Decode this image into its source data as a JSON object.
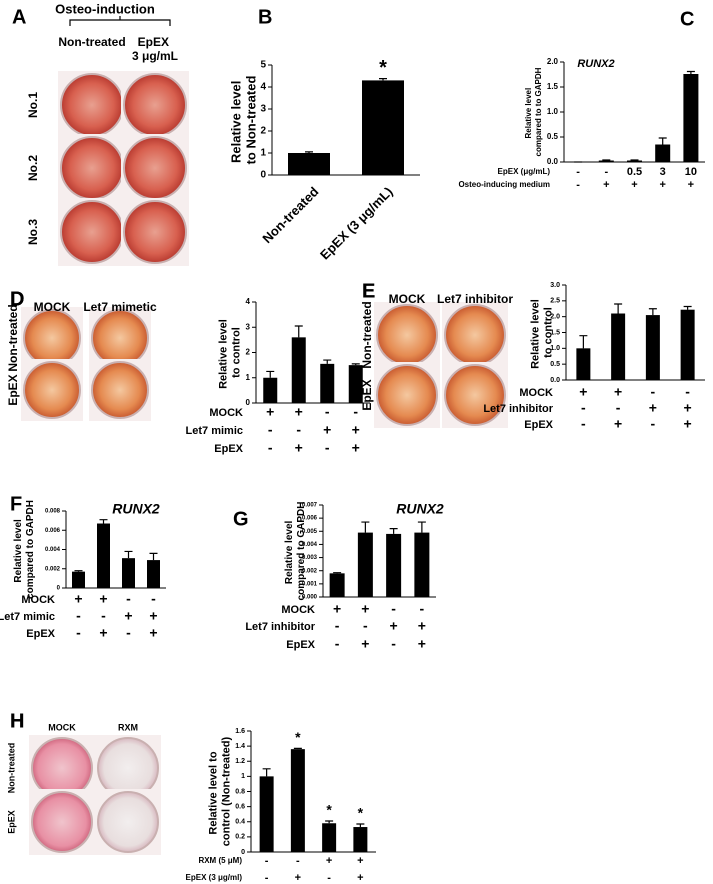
{
  "photos": {
    "A": {
      "label": "A",
      "header": "Osteo-induction",
      "columns": [
        "Non-treated",
        "EpEX 3 μg/mL"
      ],
      "rows": [
        "No.1",
        "No.2",
        "No.3"
      ]
    },
    "D": {
      "label": "D",
      "columns": [
        "MOCK",
        "Let7 mimetic"
      ],
      "rows": [
        "Non-treated",
        "EpEX"
      ]
    },
    "E": {
      "label": "E",
      "columns": [
        "MOCK",
        "Let7 inhibitor"
      ],
      "rows": [
        "Non-treated",
        "EpEX"
      ]
    },
    "H": {
      "label": "H",
      "columns": [
        "MOCK",
        "RXM"
      ],
      "rows": [
        "Non-treated",
        "EpEX"
      ]
    }
  },
  "chart_data": [
    {
      "type": "bar",
      "panel": "B",
      "ylabel": "Relative level to Non-treated",
      "color": "#000000",
      "categories": [
        "Non-treated",
        "EpEX (3 μg/mL)"
      ],
      "values": [
        1,
        4.3
      ],
      "errors": [
        0.05,
        0.08
      ],
      "significance": [
        null,
        "*"
      ],
      "ylim": [
        0,
        5
      ],
      "yticks": [
        0,
        1,
        2,
        3,
        4,
        5
      ]
    },
    {
      "type": "bar",
      "panel": "C",
      "title": "RUNX2",
      "ylabel": "Relative level compared to to GAPDH",
      "color": "#000000",
      "values": [
        0,
        0.03,
        0.03,
        0.35,
        1.76
      ],
      "errors": [
        0,
        0.01,
        0.01,
        0.13,
        0.05
      ],
      "conditions": [
        {
          "label": "EpEX (μg/mL)",
          "marks": [
            "-",
            "-",
            "0.5",
            "3",
            "10"
          ]
        },
        {
          "label": "Osteo-inducing medium",
          "marks": [
            "-",
            "+",
            "+",
            "+",
            "+"
          ]
        }
      ],
      "ylim": [
        0,
        2
      ],
      "yticks": [
        {
          "value": 0,
          "label": "0.0"
        },
        {
          "value": 0.5,
          "label": "0.5"
        },
        {
          "value": 1,
          "label": "1.0"
        },
        {
          "value": 1.5,
          "label": "1.5"
        },
        {
          "value": 2,
          "label": "2.0"
        }
      ]
    },
    {
      "type": "bar",
      "panel": "D",
      "ylabel": "Relative level to control",
      "color": "#000000",
      "values": [
        1,
        2.6,
        1.55,
        1.5
      ],
      "errors": [
        0.25,
        0.45,
        0.15,
        0.05
      ],
      "conditions": [
        {
          "label": "MOCK",
          "marks": [
            "+",
            "+",
            "-",
            "-"
          ]
        },
        {
          "label": "Let7 mimic",
          "marks": [
            "-",
            "-",
            "+",
            "+"
          ]
        },
        {
          "label": "EpEX",
          "marks": [
            "-",
            "+",
            "-",
            "+"
          ]
        }
      ],
      "ylim": [
        0,
        4
      ],
      "yticks": [
        0,
        1,
        2,
        3,
        4
      ]
    },
    {
      "type": "bar",
      "panel": "E",
      "ylabel": "Relative level to control",
      "color": "#000000",
      "values": [
        1,
        2.1,
        2.05,
        2.22
      ],
      "errors": [
        0.4,
        0.3,
        0.2,
        0.1
      ],
      "conditions": [
        {
          "label": "MOCK",
          "marks": [
            "+",
            "+",
            "-",
            "-"
          ]
        },
        {
          "label": "Let7 inhibitor",
          "marks": [
            "-",
            "-",
            "+",
            "+"
          ]
        },
        {
          "label": "EpEX",
          "marks": [
            "-",
            "+",
            "-",
            "+"
          ]
        }
      ],
      "ylim": [
        0,
        3
      ],
      "yticks": [
        {
          "value": 0,
          "label": "0.0"
        },
        {
          "value": 0.5,
          "label": "0.5"
        },
        {
          "value": 1,
          "label": "1.0"
        },
        {
          "value": 1.5,
          "label": "1.5"
        },
        {
          "value": 2,
          "label": "2.0"
        },
        {
          "value": 2.5,
          "label": "2.5"
        },
        {
          "value": 3,
          "label": "3.0"
        }
      ]
    },
    {
      "type": "bar",
      "panel": "F",
      "title": "RUNX2",
      "ylabel": "Relative level compared to GAPDH",
      "color": "#000000",
      "values": [
        0.0017,
        0.0067,
        0.0031,
        0.0029
      ],
      "errors": [
        0.0001,
        0.0004,
        0.0007,
        0.0007
      ],
      "conditions": [
        {
          "label": "MOCK",
          "marks": [
            "+",
            "+",
            "-",
            "-"
          ]
        },
        {
          "label": "Let7 mimic",
          "marks": [
            "-",
            "-",
            "+",
            "+"
          ]
        },
        {
          "label": "EpEX",
          "marks": [
            "-",
            "+",
            "-",
            "+"
          ]
        }
      ],
      "ylim": [
        0,
        0.008
      ],
      "yticks": [
        0,
        0.002,
        0.004,
        0.006,
        0.008
      ]
    },
    {
      "type": "bar",
      "panel": "G",
      "title": "RUNX2",
      "ylabel": "Relative level compared to GAPDH",
      "color": "#000000",
      "values": [
        0.0018,
        0.0049,
        0.0048,
        0.0049
      ],
      "errors": [
        5e-05,
        0.0008,
        0.0004,
        0.0008
      ],
      "conditions": [
        {
          "label": "MOCK",
          "marks": [
            "+",
            "+",
            "-",
            "-"
          ]
        },
        {
          "label": "Let7 inhibitor",
          "marks": [
            "-",
            "-",
            "+",
            "+"
          ]
        },
        {
          "label": "EpEX",
          "marks": [
            "-",
            "+",
            "-",
            "+"
          ]
        }
      ],
      "ylim": [
        0,
        0.007
      ],
      "yticks": [
        {
          "value": 0,
          "label": "0.000"
        },
        {
          "value": 0.001,
          "label": "0.001"
        },
        {
          "value": 0.002,
          "label": "0.002"
        },
        {
          "value": 0.003,
          "label": "0.003"
        },
        {
          "value": 0.004,
          "label": "0.004"
        },
        {
          "value": 0.005,
          "label": "0.005"
        },
        {
          "value": 0.006,
          "label": "0.006"
        },
        {
          "value": 0.007,
          "label": "0.007"
        }
      ]
    },
    {
      "type": "bar",
      "panel": "H",
      "ylabel": "Relative level to control (Non-treated)",
      "color": "#000000",
      "values": [
        1,
        1.36,
        0.38,
        0.33
      ],
      "errors": [
        0.1,
        0.01,
        0.03,
        0.04
      ],
      "significance": [
        null,
        "*",
        "*",
        "*"
      ],
      "conditions": [
        {
          "label": "RXM (5 μM)",
          "marks": [
            "-",
            "-",
            "+",
            "+"
          ]
        },
        {
          "label": "EpEX (3 μg/ml)",
          "marks": [
            "-",
            "+",
            "-",
            "+"
          ]
        }
      ],
      "ylim": [
        0,
        1.6
      ],
      "yticks": [
        0,
        0.2,
        0.4,
        0.6,
        0.8,
        1,
        1.2,
        1.4,
        1.6
      ]
    }
  ]
}
